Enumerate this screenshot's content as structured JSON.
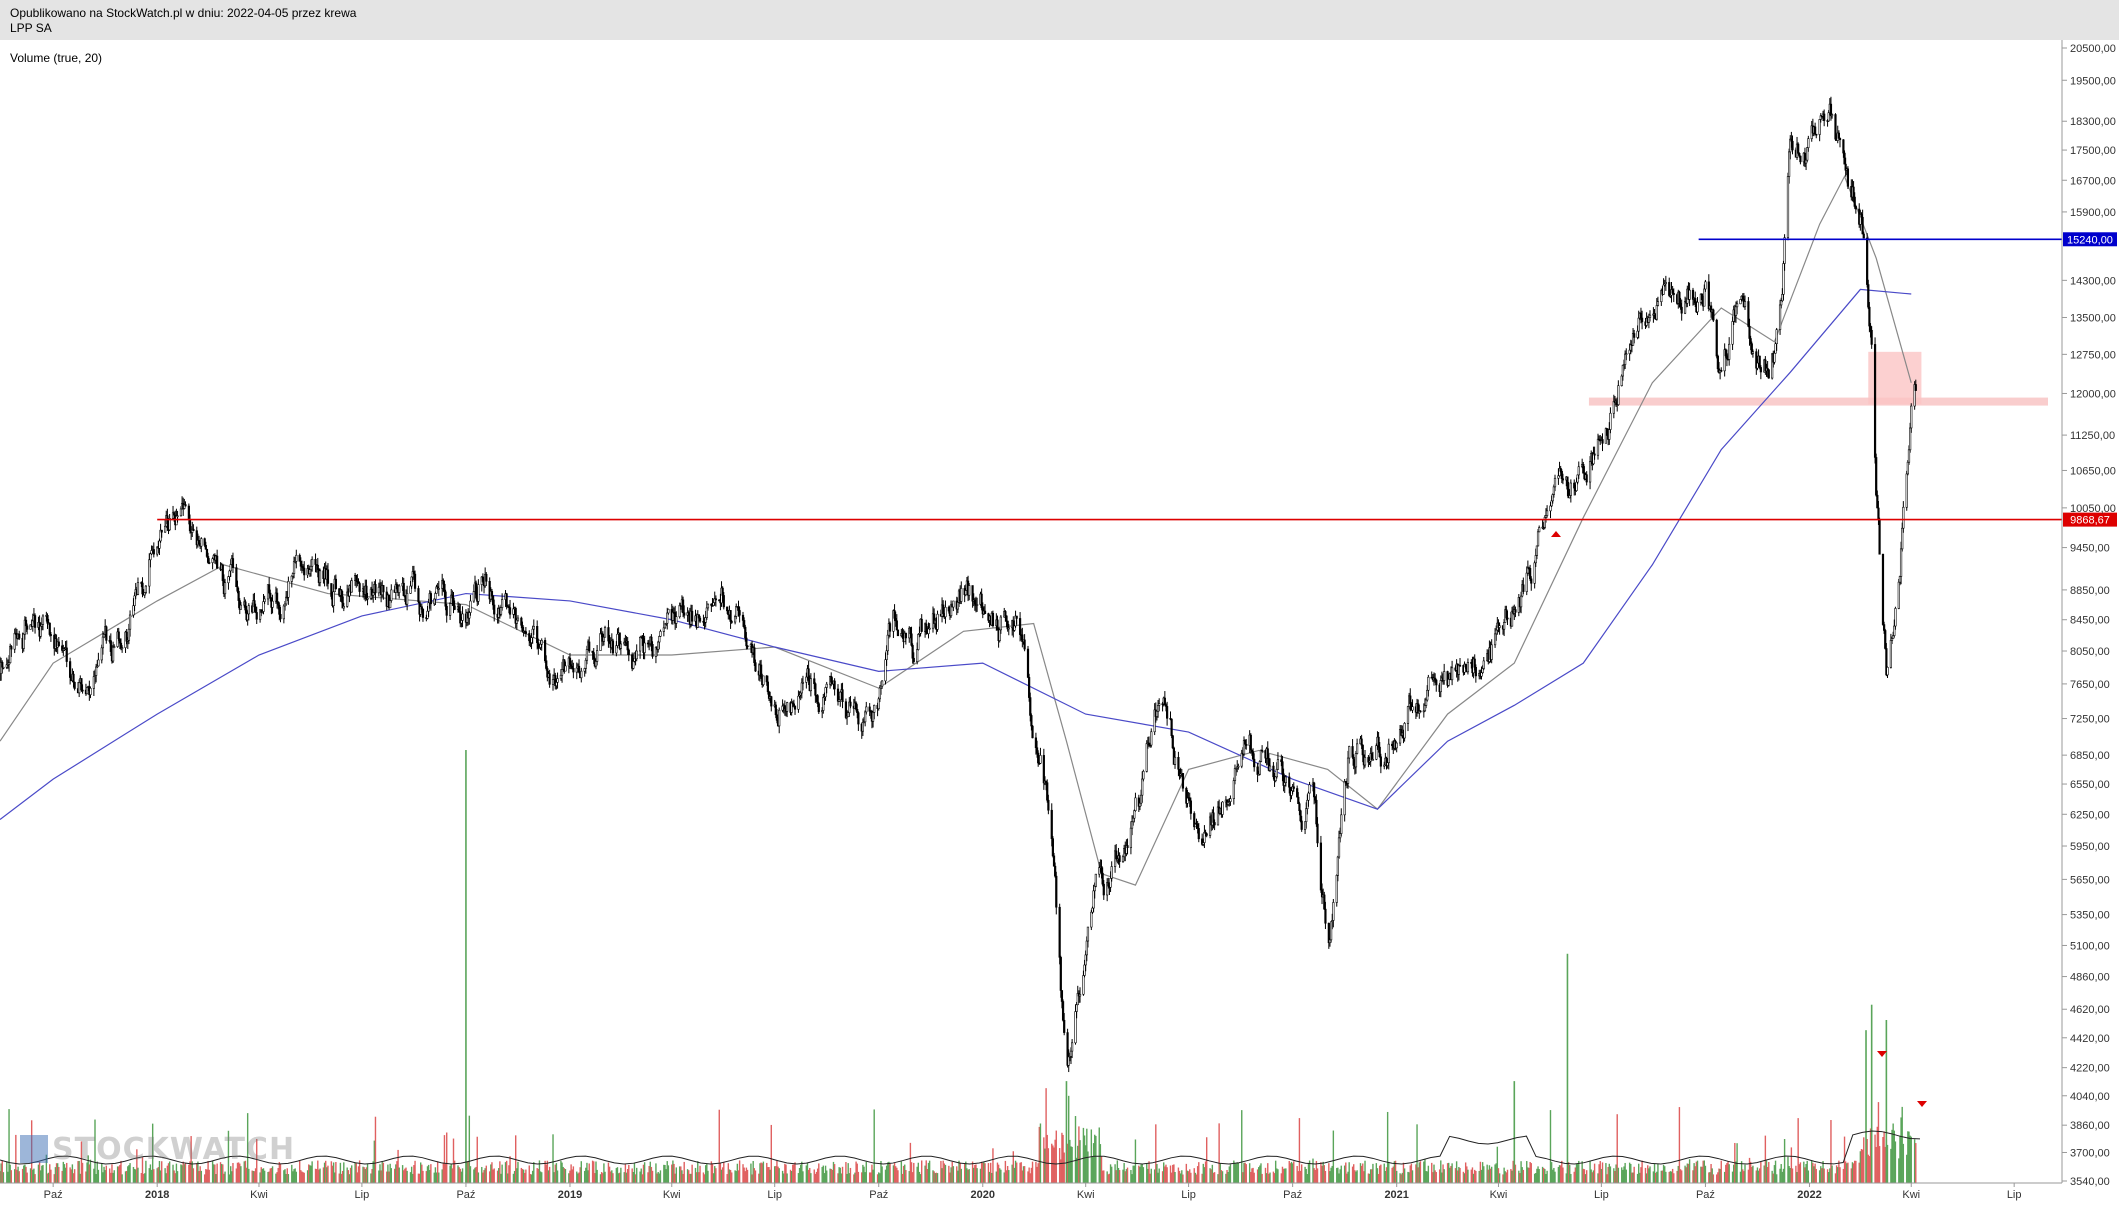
{
  "header": {
    "published": "Opublikowano na StockWatch.pl w dniu: 2022-04-05 przez krewa",
    "ticker": "LPP SA"
  },
  "indicator_label": "Volume (true, 20)",
  "logo_text": "STOCKWATCH",
  "chart_data": {
    "type": "candlestick",
    "title": "LPP SA",
    "ylim": [
      3540,
      20500
    ],
    "scale": "log",
    "y_ticks": [
      "20500,00",
      "19500,00",
      "18300,00",
      "17500,00",
      "16700,00",
      "15900,00",
      "14300,00",
      "13500,00",
      "12750,00",
      "12000,00",
      "11250,00",
      "10650,00",
      "10050,00",
      "9450,00",
      "8850,00",
      "8450,00",
      "8050,00",
      "7650,00",
      "7250,00",
      "6850,00",
      "6550,00",
      "6250,00",
      "5950,00",
      "5650,00",
      "5350,00",
      "5100,00",
      "4860,00",
      "4620,00",
      "4420,00",
      "4220,00",
      "4040,00",
      "3860,00",
      "3700,00",
      "3540,00"
    ],
    "x_ticks": [
      "Paź",
      "2018",
      "Kwi",
      "Lip",
      "Paź",
      "2019",
      "Kwi",
      "Lip",
      "Paź",
      "2020",
      "Kwi",
      "Lip",
      "Paź",
      "2021",
      "Kwi",
      "Lip",
      "Paź",
      "2022",
      "Kwi",
      "Lip"
    ],
    "x_range": [
      "2017-08-15",
      "2022-07-15"
    ],
    "price_path": [
      [
        "2017-08-15",
        7900
      ],
      [
        "2017-09-01",
        8500
      ],
      [
        "2017-10-01",
        8200
      ],
      [
        "2017-11-01",
        7700
      ],
      [
        "2017-12-01",
        8300
      ],
      [
        "2017-12-20",
        8800
      ],
      [
        "2018-01-05",
        9900
      ],
      [
        "2018-02-01",
        9500
      ],
      [
        "2018-03-01",
        8900
      ],
      [
        "2018-04-01",
        8500
      ],
      [
        "2018-05-01",
        9100
      ],
      [
        "2018-05-15",
        9600
      ],
      [
        "2018-06-01",
        9000
      ],
      [
        "2018-07-01",
        8800
      ],
      [
        "2018-08-01",
        8650
      ],
      [
        "2018-09-01",
        8700
      ],
      [
        "2018-10-01",
        8600
      ],
      [
        "2018-10-15",
        9100
      ],
      [
        "2018-11-01",
        8700
      ],
      [
        "2018-12-01",
        8000
      ],
      [
        "2018-12-20",
        7600
      ],
      [
        "2019-01-15",
        7700
      ],
      [
        "2019-02-01",
        8200
      ],
      [
        "2019-03-01",
        7900
      ],
      [
        "2019-04-01",
        8300
      ],
      [
        "2019-05-01",
        8600
      ],
      [
        "2019-05-15",
        8900
      ],
      [
        "2019-06-01",
        8400
      ],
      [
        "2019-07-01",
        7300
      ],
      [
        "2019-08-01",
        7600
      ],
      [
        "2019-08-20",
        7700
      ],
      [
        "2019-09-10",
        7200
      ],
      [
        "2019-10-01",
        7200
      ],
      [
        "2019-10-15",
        8400
      ],
      [
        "2019-11-01",
        8200
      ],
      [
        "2019-11-20",
        8600
      ],
      [
        "2019-12-15",
        8750
      ],
      [
        "2020-01-15",
        8500
      ],
      [
        "2020-02-01",
        8200
      ],
      [
        "2020-02-20",
        6900
      ],
      [
        "2020-03-01",
        6200
      ],
      [
        "2020-03-15",
        4100
      ],
      [
        "2020-03-25",
        4700
      ],
      [
        "2020-04-10",
        5500
      ],
      [
        "2020-05-01",
        5900
      ],
      [
        "2020-05-20",
        6300
      ],
      [
        "2020-06-01",
        7600
      ],
      [
        "2020-06-20",
        6800
      ],
      [
        "2020-07-15",
        6000
      ],
      [
        "2020-08-01",
        6500
      ],
      [
        "2020-08-20",
        7000
      ],
      [
        "2020-09-10",
        6800
      ],
      [
        "2020-10-01",
        6700
      ],
      [
        "2020-10-20",
        6300
      ],
      [
        "2020-11-01",
        5100
      ],
      [
        "2020-11-20",
        7000
      ],
      [
        "2020-12-10",
        6800
      ],
      [
        "2021-01-05",
        7300
      ],
      [
        "2021-02-01",
        7800
      ],
      [
        "2021-03-01",
        7700
      ],
      [
        "2021-04-01",
        8200
      ],
      [
        "2021-04-20",
        8600
      ],
      [
        "2021-05-10",
        9600
      ],
      [
        "2021-05-25",
        10800
      ],
      [
        "2021-06-10",
        10300
      ],
      [
        "2021-07-01",
        11200
      ],
      [
        "2021-07-20",
        12800
      ],
      [
        "2021-08-15",
        13500
      ],
      [
        "2021-09-15",
        14000
      ],
      [
        "2021-10-01",
        14300
      ],
      [
        "2021-10-15",
        12000
      ],
      [
        "2021-11-01",
        13700
      ],
      [
        "2021-11-20",
        12100
      ],
      [
        "2021-12-05",
        13300
      ],
      [
        "2021-12-15",
        17200
      ],
      [
        "2022-01-05",
        17800
      ],
      [
        "2022-01-20",
        18600
      ],
      [
        "2022-02-01",
        17000
      ],
      [
        "2022-02-15",
        15700
      ],
      [
        "2022-02-25",
        12900
      ],
      [
        "2022-03-01",
        10000
      ],
      [
        "2022-03-10",
        7700
      ],
      [
        "2022-03-20",
        9000
      ],
      [
        "2022-04-01",
        11300
      ],
      [
        "2022-04-05",
        11700
      ]
    ],
    "ma_fast": [
      [
        "2017-08-15",
        7000
      ],
      [
        "2017-10-01",
        7900
      ],
      [
        "2018-01-01",
        8700
      ],
      [
        "2018-03-01",
        9200
      ],
      [
        "2018-06-01",
        8800
      ],
      [
        "2018-10-01",
        8650
      ],
      [
        "2019-01-01",
        8000
      ],
      [
        "2019-04-01",
        8000
      ],
      [
        "2019-07-01",
        8100
      ],
      [
        "2019-10-01",
        7600
      ],
      [
        "2019-12-15",
        8300
      ],
      [
        "2020-02-15",
        8400
      ],
      [
        "2020-03-15",
        7000
      ],
      [
        "2020-04-15",
        5700
      ],
      [
        "2020-05-15",
        5600
      ],
      [
        "2020-07-01",
        6700
      ],
      [
        "2020-09-01",
        6900
      ],
      [
        "2020-11-01",
        6700
      ],
      [
        "2020-12-15",
        6300
      ],
      [
        "2021-02-15",
        7300
      ],
      [
        "2021-04-15",
        7900
      ],
      [
        "2021-06-15",
        9900
      ],
      [
        "2021-08-15",
        12200
      ],
      [
        "2021-10-15",
        13700
      ],
      [
        "2021-12-01",
        13000
      ],
      [
        "2022-01-10",
        15600
      ],
      [
        "2022-02-01",
        16800
      ],
      [
        "2022-03-01",
        14800
      ],
      [
        "2022-04-01",
        12200
      ]
    ],
    "ma_slow": [
      [
        "2017-08-15",
        6200
      ],
      [
        "2017-10-01",
        6600
      ],
      [
        "2018-01-01",
        7300
      ],
      [
        "2018-04-01",
        8000
      ],
      [
        "2018-07-01",
        8500
      ],
      [
        "2018-10-01",
        8800
      ],
      [
        "2019-01-01",
        8700
      ],
      [
        "2019-04-01",
        8450
      ],
      [
        "2019-07-01",
        8100
      ],
      [
        "2019-10-01",
        7800
      ],
      [
        "2020-01-01",
        7900
      ],
      [
        "2020-04-01",
        7300
      ],
      [
        "2020-07-01",
        7100
      ],
      [
        "2020-10-01",
        6600
      ],
      [
        "2020-12-15",
        6300
      ],
      [
        "2021-02-15",
        7000
      ],
      [
        "2021-04-15",
        7400
      ],
      [
        "2021-06-15",
        7900
      ],
      [
        "2021-08-15",
        9200
      ],
      [
        "2021-10-15",
        11000
      ],
      [
        "2021-12-15",
        12400
      ],
      [
        "2022-02-15",
        14100
      ],
      [
        "2022-04-01",
        14000
      ]
    ],
    "horizontal_levels": [
      {
        "value": 15240,
        "label": "15240,00",
        "color": "#0000cc"
      },
      {
        "value": 9868.67,
        "label": "9868,67",
        "color": "#dd0000"
      }
    ],
    "support_zone": {
      "value": 11850,
      "color": "#f8c8c8"
    },
    "highlight_box": {
      "from": "2022-02-22",
      "to": "2022-04-10",
      "low": 11800,
      "high": 12800,
      "color": "#fbc4c4"
    },
    "volume_spikes": [
      [
        "2018-10-01",
        0.85
      ],
      [
        "2020-03-15",
        0.2
      ],
      [
        "2021-04-15",
        0.2
      ],
      [
        "2021-06-01",
        0.45
      ],
      [
        "2022-02-20",
        0.3
      ],
      [
        "2022-02-25",
        0.35
      ],
      [
        "2022-03-10",
        0.32
      ]
    ]
  }
}
